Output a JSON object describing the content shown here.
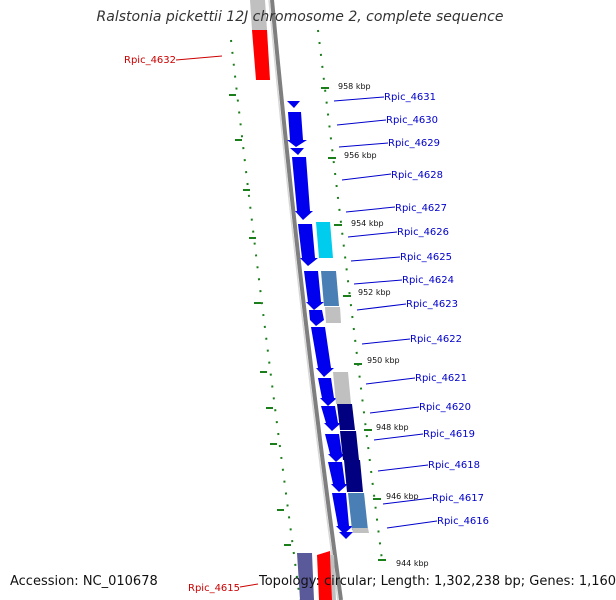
{
  "header": {
    "title": "Ralstonia pickettii 12J chromosome 2, complete sequence"
  },
  "footer": {
    "accession": "Accession: NC_010678",
    "summary": "Topology: circular; Length: 1,302,238 bp; Genes: 1,160"
  },
  "colors": {
    "backbone": "#7f7f7f",
    "tick": "#1a7f1a",
    "label_plus": "#0000cc",
    "label_minus": "#cc0000",
    "gene_blue": "#0000ee",
    "gene_navy": "#000080",
    "gene_steel": "#4a7fb5",
    "gene_cyan": "#00ccee",
    "gene_grey": "#c0c0c0",
    "gene_red": "#ff0000",
    "gene_slate": "#5a5a9a"
  },
  "map": {
    "kbp_markers": [
      "958 kbp",
      "956 kbp",
      "954 kbp",
      "952 kbp",
      "950 kbp",
      "948 kbp",
      "946 kbp",
      "944 kbp"
    ],
    "gene_labels": [
      {
        "text": "Rpic_4632",
        "strand": "minus"
      },
      {
        "text": "Rpic_4631",
        "strand": "plus"
      },
      {
        "text": "Rpic_4630",
        "strand": "plus"
      },
      {
        "text": "Rpic_4629",
        "strand": "plus"
      },
      {
        "text": "Rpic_4628",
        "strand": "plus"
      },
      {
        "text": "Rpic_4627",
        "strand": "plus"
      },
      {
        "text": "Rpic_4626",
        "strand": "plus"
      },
      {
        "text": "Rpic_4625",
        "strand": "plus"
      },
      {
        "text": "Rpic_4624",
        "strand": "plus"
      },
      {
        "text": "Rpic_4623",
        "strand": "plus"
      },
      {
        "text": "Rpic_4622",
        "strand": "plus"
      },
      {
        "text": "Rpic_4621",
        "strand": "plus"
      },
      {
        "text": "Rpic_4620",
        "strand": "plus"
      },
      {
        "text": "Rpic_4619",
        "strand": "plus"
      },
      {
        "text": "Rpic_4618",
        "strand": "plus"
      },
      {
        "text": "Rpic_4617",
        "strand": "plus"
      },
      {
        "text": "Rpic_4616",
        "strand": "plus"
      },
      {
        "text": "Rpic_4615",
        "strand": "minus"
      }
    ]
  }
}
